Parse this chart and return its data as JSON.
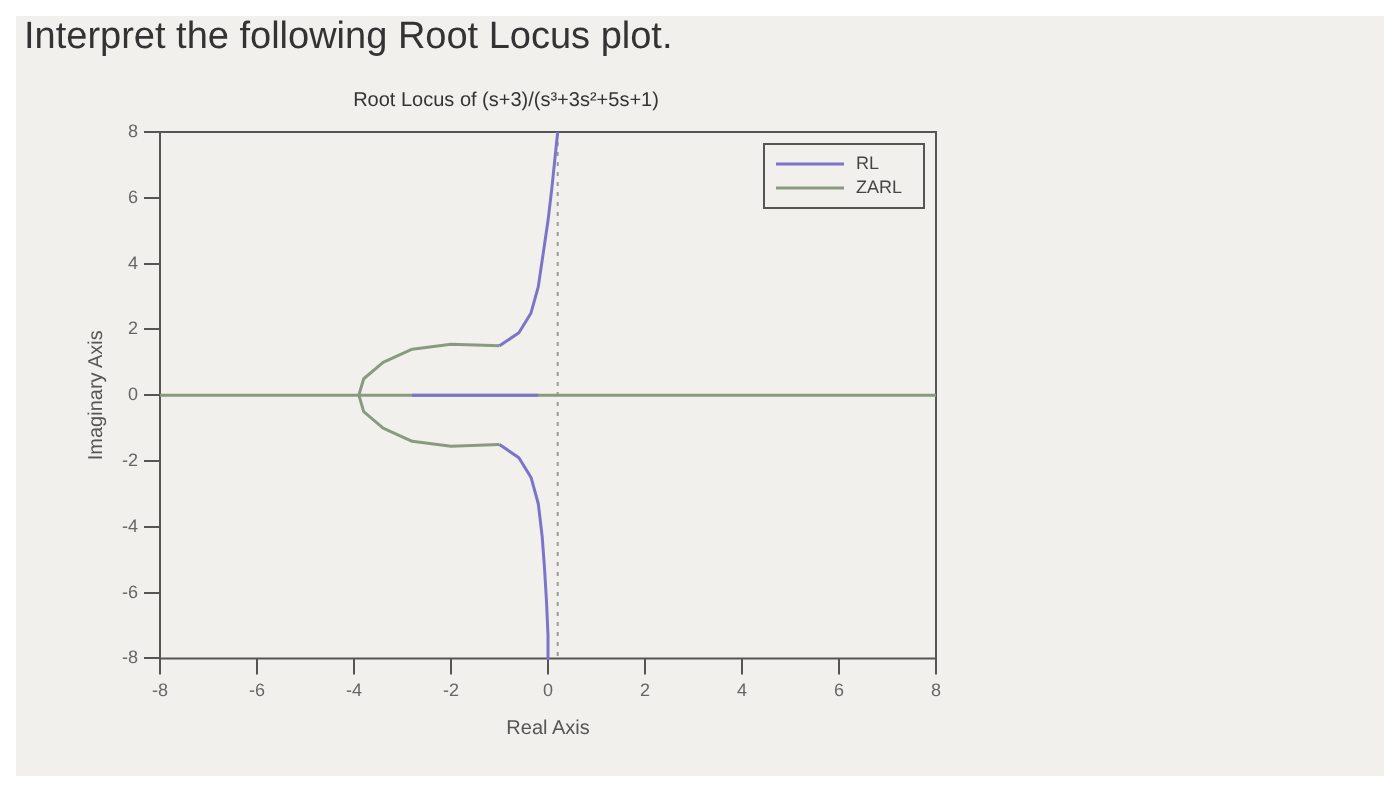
{
  "chart_data": {
    "type": "line",
    "title": "Root Locus of (s+3)/(s³+3s²+5s+1)",
    "xlabel": "Real Axis",
    "ylabel": "Imaginary Axis",
    "annotations": [
      "Interpret the following Root Locus plot."
    ],
    "xlim": [
      -8,
      8
    ],
    "ylim": [
      -8,
      8
    ],
    "xticks": [
      -8,
      -6,
      -4,
      -2,
      0,
      2,
      4,
      6,
      8
    ],
    "yticks": [
      -8,
      -6,
      -4,
      -2,
      0,
      2,
      4,
      6,
      8
    ],
    "grid": false,
    "legend": "top right",
    "marker": "none",
    "line_style": "solid",
    "ref_lines": [
      {
        "axis": "x",
        "value": 0.2,
        "color": "#9a9a9a",
        "line_style": "dotted"
      },
      {
        "axis": "y",
        "value": 0,
        "color": "#8a9a80",
        "line_style": "solid"
      }
    ],
    "series": [
      {
        "name": "RL",
        "color": "#7b74c9",
        "x": [
          -1,
          -0.6,
          -0.35,
          -0.2,
          -0.1,
          0,
          0.08,
          0.15,
          0.2,
          null,
          -1,
          -0.6,
          -0.35,
          -0.2,
          -0.12,
          -0.07,
          -0.03,
          0,
          0,
          null,
          -2.8,
          -0.2
        ],
        "values": [
          1.5,
          1.9,
          2.5,
          3.3,
          4.3,
          5.3,
          6.3,
          7.3,
          8,
          null,
          -1.5,
          -1.9,
          -2.5,
          -3.3,
          -4.3,
          -5.3,
          -6.3,
          -7.3,
          -8,
          null,
          0,
          0
        ]
      },
      {
        "name": "ZARL",
        "color": "#8a9a80",
        "x": [
          -1,
          -2,
          -2.8,
          -3.4,
          -3.8,
          -3.9,
          -3.8,
          -3.4,
          -2.8,
          -2,
          -1
        ],
        "values": [
          1.5,
          1.55,
          1.4,
          1,
          0.5,
          0,
          -0.5,
          -1,
          -1.4,
          -1.55,
          -1.5
        ]
      }
    ]
  }
}
